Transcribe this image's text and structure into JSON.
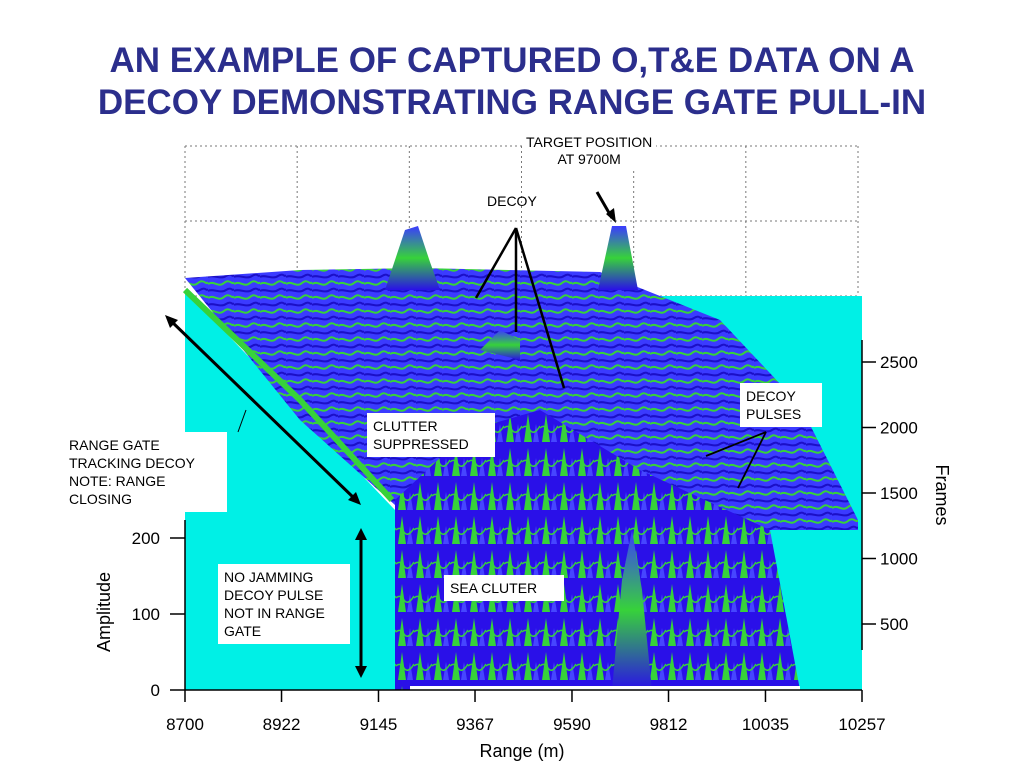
{
  "title": {
    "line1": "AN EXAMPLE OF CAPTURED O,T&E DATA ON A",
    "line2": "DECOY DEMONSTRATING RANGE GATE PULL-IN"
  },
  "chart_data": {
    "type": "surface",
    "x_axis": {
      "label": "Range (m)",
      "ticks": [
        8700,
        8922,
        9145,
        9367,
        9590,
        9812,
        10035,
        10257
      ],
      "range": [
        8700,
        10257
      ]
    },
    "z_axis": {
      "label": "Amplitude",
      "ticks": [
        0,
        100,
        200
      ],
      "range": [
        0,
        200
      ]
    },
    "y_axis": {
      "label": "Frames",
      "ticks": [
        500,
        1000,
        1500,
        2000,
        2500
      ]
    },
    "grid": true,
    "colors": {
      "surface_dark": "#2a10e8",
      "surface_mid": "#3b3bff",
      "surface_green": "#37d23a",
      "floor": "#00f0e6"
    },
    "annotations": {
      "target": "TARGET POSITION\nAT 9700M",
      "decoy": "DECOY",
      "decoy_pulses": "DECOY\nPULSES",
      "clutter_suppressed": "CLUTTER\nSUPPRESSED",
      "range_gate": "RANGE GATE\nTRACKING DECOY\nNOTE: RANGE\nCLOSING",
      "no_jamming": "NO JAMMING\nDECOY PULSE\nNOT IN RANGE\nGATE",
      "sea_clutter": "SEA CLUTER"
    }
  }
}
